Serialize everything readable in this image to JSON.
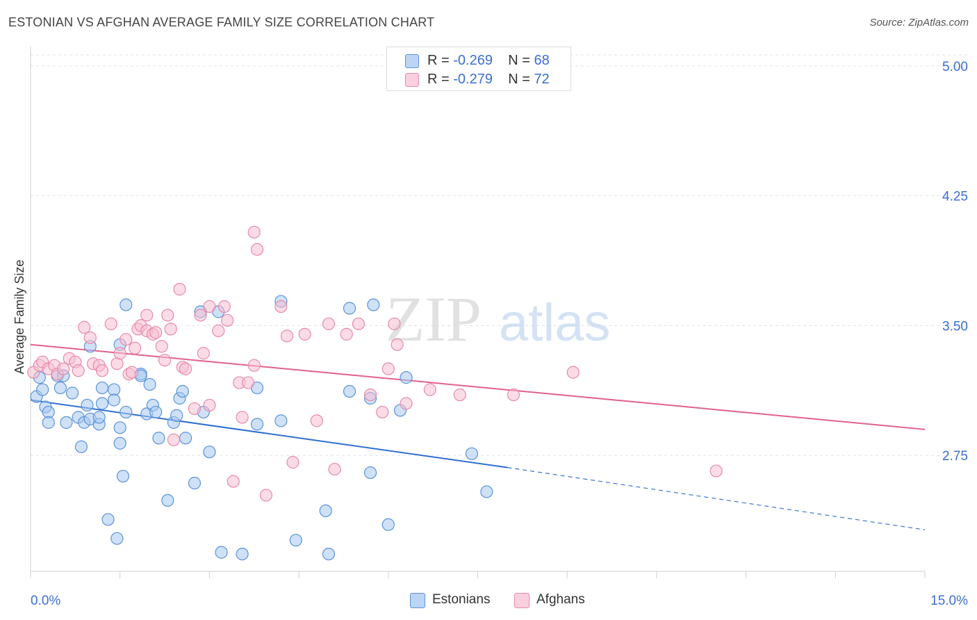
{
  "header": {
    "title": "ESTONIAN VS AFGHAN AVERAGE FAMILY SIZE CORRELATION CHART",
    "source": "Source: ZipAtlas.com"
  },
  "watermark": {
    "zip": "ZIP",
    "atlas": "atlas"
  },
  "legend": {
    "rows": [
      {
        "r_label": "R =",
        "r_value": "-0.269",
        "n_label": "N =",
        "n_value": "68",
        "color": "#a8c8f0"
      },
      {
        "r_label": "R =",
        "r_value": "-0.279",
        "n_label": "N =",
        "n_value": "72",
        "color": "#f8b6cc"
      }
    ]
  },
  "bottom_legend": {
    "estonians": "Estonians",
    "afghans": "Afghans"
  },
  "colors": {
    "blue_fill": "#a8c8f0",
    "blue_stroke": "#5b93d8",
    "blue_line": "#2f6fd0",
    "pink_fill": "#f8c0d2",
    "pink_stroke": "#e68aaa",
    "pink_line": "#e0608e",
    "axis_text": "#3a6fd1"
  },
  "chart_data": {
    "type": "scatter",
    "title": "ESTONIAN VS AFGHAN AVERAGE FAMILY SIZE CORRELATION CHART",
    "xlabel": "",
    "ylabel": "Average Family Size",
    "xlim": [
      0,
      15
    ],
    "ylim": [
      2.08,
      5.1
    ],
    "x_tick_labels": [
      "0.0%",
      "15.0%"
    ],
    "y_ticks": [
      2.75,
      3.5,
      4.25,
      5.0
    ],
    "y_tick_labels": [
      "2.75",
      "3.50",
      "4.25",
      "5.00"
    ],
    "series": [
      {
        "name": "Estonians",
        "r": -0.269,
        "n": 68,
        "trend": {
          "x0": 0.0,
          "y0": 3.07,
          "x1": 8.0,
          "y1": 2.68,
          "dash_to_x": 15.0,
          "dash_to_y": 2.32
        },
        "points": [
          [
            0.1,
            3.09
          ],
          [
            0.2,
            3.13
          ],
          [
            0.15,
            3.2
          ],
          [
            0.25,
            3.03
          ],
          [
            0.3,
            3.0
          ],
          [
            0.45,
            3.21
          ],
          [
            0.6,
            2.94
          ],
          [
            0.55,
            3.21
          ],
          [
            0.7,
            3.11
          ],
          [
            0.5,
            3.14
          ],
          [
            0.3,
            2.94
          ],
          [
            0.8,
            2.97
          ],
          [
            0.9,
            2.94
          ],
          [
            0.85,
            2.8
          ],
          [
            0.95,
            3.04
          ],
          [
            1.0,
            2.96
          ],
          [
            1.0,
            3.38
          ],
          [
            1.15,
            2.93
          ],
          [
            1.15,
            2.97
          ],
          [
            1.2,
            3.14
          ],
          [
            1.2,
            3.05
          ],
          [
            1.4,
            3.13
          ],
          [
            1.4,
            3.07
          ],
          [
            1.3,
            2.38
          ],
          [
            1.45,
            2.27
          ],
          [
            1.5,
            2.91
          ],
          [
            1.55,
            2.63
          ],
          [
            1.5,
            2.82
          ],
          [
            1.6,
            3.62
          ],
          [
            1.5,
            3.39
          ],
          [
            1.6,
            3.0
          ],
          [
            1.85,
            3.22
          ],
          [
            1.85,
            3.21
          ],
          [
            1.95,
            2.99
          ],
          [
            2.0,
            3.16
          ],
          [
            2.05,
            3.04
          ],
          [
            2.1,
            3.0
          ],
          [
            2.15,
            2.85
          ],
          [
            2.3,
            2.49
          ],
          [
            2.4,
            2.94
          ],
          [
            2.5,
            3.08
          ],
          [
            2.45,
            2.98
          ],
          [
            2.55,
            3.12
          ],
          [
            2.6,
            2.85
          ],
          [
            2.75,
            2.59
          ],
          [
            2.85,
            3.58
          ],
          [
            2.9,
            3.0
          ],
          [
            3.0,
            2.77
          ],
          [
            3.15,
            3.58
          ],
          [
            3.2,
            2.19
          ],
          [
            3.55,
            2.18
          ],
          [
            3.8,
            2.93
          ],
          [
            3.8,
            3.14
          ],
          [
            4.2,
            2.95
          ],
          [
            4.2,
            3.64
          ],
          [
            4.45,
            2.26
          ],
          [
            4.95,
            2.43
          ],
          [
            5.0,
            2.18
          ],
          [
            5.35,
            3.6
          ],
          [
            5.35,
            3.12
          ],
          [
            5.7,
            2.65
          ],
          [
            5.7,
            3.08
          ],
          [
            5.75,
            3.62
          ],
          [
            6.0,
            2.35
          ],
          [
            6.2,
            3.01
          ],
          [
            6.3,
            3.2
          ],
          [
            7.4,
            2.76
          ],
          [
            7.65,
            2.54
          ]
        ]
      },
      {
        "name": "Afghans",
        "r": -0.279,
        "n": 72,
        "trend": {
          "x0": 0.0,
          "y0": 3.39,
          "x1": 15.0,
          "y1": 2.9
        },
        "points": [
          [
            0.05,
            3.23
          ],
          [
            0.15,
            3.27
          ],
          [
            0.2,
            3.29
          ],
          [
            0.3,
            3.25
          ],
          [
            0.4,
            3.27
          ],
          [
            0.45,
            3.22
          ],
          [
            0.55,
            3.25
          ],
          [
            0.65,
            3.31
          ],
          [
            0.75,
            3.29
          ],
          [
            0.8,
            3.24
          ],
          [
            0.9,
            3.49
          ],
          [
            1.0,
            3.43
          ],
          [
            1.05,
            3.28
          ],
          [
            1.15,
            3.27
          ],
          [
            1.2,
            3.24
          ],
          [
            1.35,
            3.51
          ],
          [
            1.45,
            3.28
          ],
          [
            1.5,
            3.34
          ],
          [
            1.6,
            3.42
          ],
          [
            1.65,
            3.22
          ],
          [
            1.7,
            3.23
          ],
          [
            1.75,
            3.37
          ],
          [
            1.8,
            3.48
          ],
          [
            1.85,
            3.5
          ],
          [
            1.95,
            3.56
          ],
          [
            1.95,
            3.47
          ],
          [
            2.05,
            3.45
          ],
          [
            2.1,
            3.46
          ],
          [
            2.2,
            3.38
          ],
          [
            2.25,
            3.3
          ],
          [
            2.3,
            3.56
          ],
          [
            2.35,
            3.48
          ],
          [
            2.4,
            2.84
          ],
          [
            2.5,
            3.71
          ],
          [
            2.55,
            3.26
          ],
          [
            2.6,
            3.25
          ],
          [
            2.75,
            3.02
          ],
          [
            2.85,
            3.56
          ],
          [
            2.9,
            3.34
          ],
          [
            3.0,
            3.61
          ],
          [
            3.0,
            3.04
          ],
          [
            3.15,
            3.47
          ],
          [
            3.25,
            3.61
          ],
          [
            3.3,
            3.53
          ],
          [
            3.4,
            2.6
          ],
          [
            3.5,
            3.17
          ],
          [
            3.55,
            2.97
          ],
          [
            3.65,
            3.17
          ],
          [
            3.75,
            3.27
          ],
          [
            3.75,
            4.04
          ],
          [
            3.8,
            3.94
          ],
          [
            3.95,
            2.52
          ],
          [
            4.2,
            3.61
          ],
          [
            4.3,
            3.44
          ],
          [
            4.4,
            2.71
          ],
          [
            4.6,
            3.45
          ],
          [
            4.8,
            2.95
          ],
          [
            5.0,
            3.51
          ],
          [
            5.1,
            2.67
          ],
          [
            5.3,
            3.45
          ],
          [
            5.5,
            3.51
          ],
          [
            5.7,
            3.1
          ],
          [
            5.9,
            3.0
          ],
          [
            6.0,
            3.25
          ],
          [
            6.1,
            3.51
          ],
          [
            6.15,
            3.39
          ],
          [
            6.3,
            3.05
          ],
          [
            6.7,
            3.13
          ],
          [
            7.2,
            3.1
          ],
          [
            8.1,
            3.1
          ],
          [
            9.1,
            3.23
          ],
          [
            11.5,
            2.66
          ]
        ]
      }
    ]
  }
}
